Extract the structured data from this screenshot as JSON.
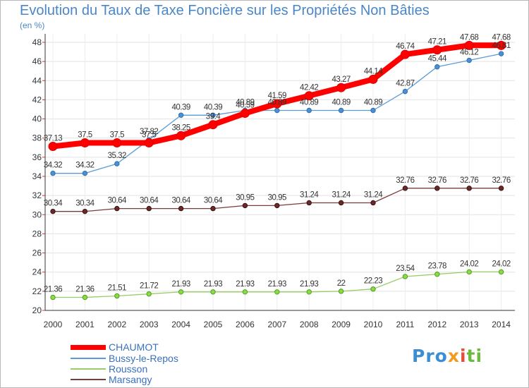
{
  "chart_data": {
    "type": "line",
    "title": "Evolution du Taux de Taxe Foncière sur les Propriétés Non Bâties",
    "ylabel": "(en %)",
    "ylim": [
      20,
      48
    ],
    "yticks": [
      20,
      22,
      24,
      26,
      28,
      30,
      32,
      34,
      36,
      38,
      40,
      42,
      44,
      46,
      48
    ],
    "categories": [
      "2000",
      "2001",
      "2002",
      "2003",
      "2004",
      "2005",
      "2006",
      "2007",
      "2008",
      "2009",
      "2010",
      "2011",
      "2012",
      "2013",
      "2014"
    ],
    "series": [
      {
        "name": "CHAUMOT",
        "color": "#ff0000",
        "values": [
          37.13,
          37.5,
          37.5,
          37.5,
          38.25,
          39.4,
          40.59,
          41.59,
          42.42,
          43.27,
          44.14,
          46.74,
          47.21,
          47.68,
          47.68
        ],
        "labels": [
          "37.13",
          "37.5",
          "37.5",
          "37.5",
          "38.25",
          "39.4",
          "40.59",
          "41.59",
          "42.42",
          "43.27",
          "44.14",
          "46.74",
          "47.21",
          "47.68",
          "47.68"
        ]
      },
      {
        "name": "Bussy-le-Repos",
        "color": "#5b9bd5",
        "values": [
          34.32,
          34.32,
          35.32,
          37.82,
          40.39,
          40.39,
          40.89,
          40.89,
          40.89,
          40.89,
          40.89,
          42.87,
          45.44,
          46.12,
          46.81
        ],
        "labels": [
          "34.32",
          "34.32",
          "35.32",
          "37.82",
          "40.39",
          "40.39",
          "40.89",
          "40.89",
          "40.89",
          "40.89",
          "40.89",
          "42.87",
          "45.44",
          "46.12",
          "46.81"
        ]
      },
      {
        "name": "Rousson",
        "color": "#99cc66",
        "values": [
          21.36,
          21.36,
          21.51,
          21.72,
          21.93,
          21.93,
          21.93,
          21.93,
          21.93,
          22,
          22.23,
          23.54,
          23.78,
          24.02,
          24.02
        ],
        "labels": [
          "21.36",
          "21.36",
          "21.51",
          "21.72",
          "21.93",
          "21.93",
          "21.93",
          "21.93",
          "21.93",
          "22",
          "22.23",
          "23.54",
          "23.78",
          "24.02",
          "24.02"
        ]
      },
      {
        "name": "Marsangy",
        "color": "#7a3b3b",
        "values": [
          30.34,
          30.34,
          30.64,
          30.64,
          30.64,
          30.64,
          30.95,
          30.95,
          31.24,
          31.24,
          31.24,
          32.76,
          32.76,
          32.76,
          32.76
        ],
        "labels": [
          "30.34",
          "30.34",
          "30.64",
          "30.64",
          "30.64",
          "30.64",
          "30.95",
          "30.95",
          "31.24",
          "31.24",
          "31.24",
          "32.76",
          "32.76",
          "32.76",
          "32.76"
        ]
      }
    ],
    "grid": true,
    "legend": "bottom-left"
  },
  "logo": {
    "p1": "Pro",
    "p2": "x",
    "p3": "i",
    "p4": "ti"
  }
}
